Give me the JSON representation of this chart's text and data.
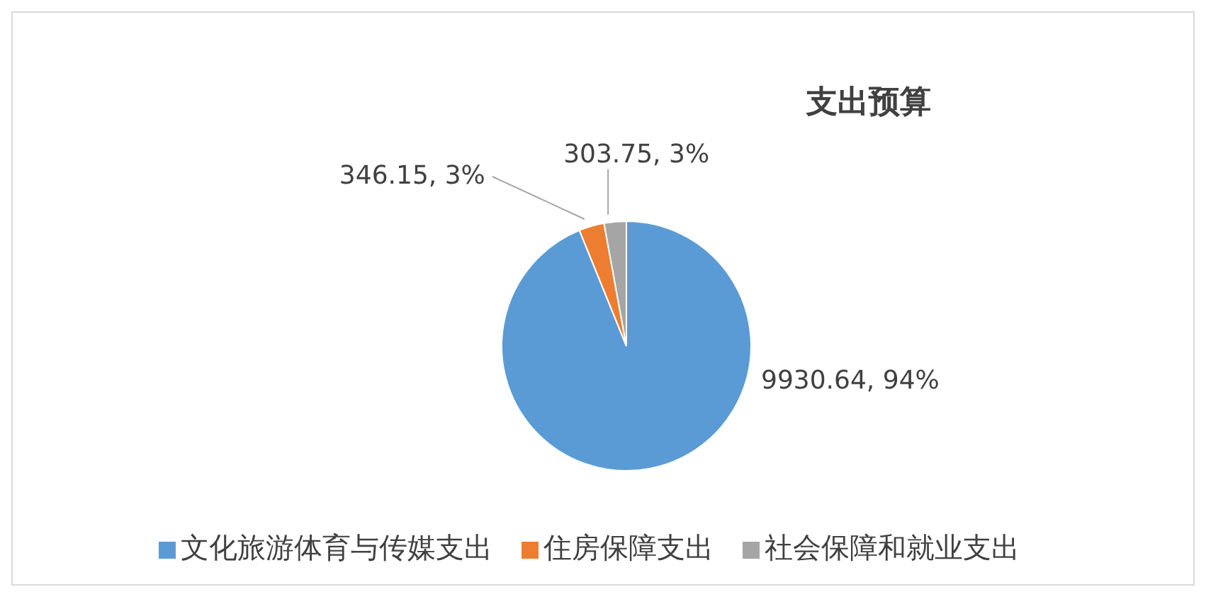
{
  "chart_data": {
    "type": "pie",
    "title": "支出预算",
    "categories": [
      "文化旅游体育与传媒支出",
      "住房保障支出",
      "社会保障和就业支出"
    ],
    "values": [
      9930.64,
      346.15,
      303.75
    ],
    "colors": [
      "#5b9bd5",
      "#ed7d31",
      "#a5a5a5"
    ],
    "value_labels": [
      "9930.64, 94%",
      "346.15, 3%",
      "303.75, 3%"
    ],
    "legend": "bottom"
  }
}
